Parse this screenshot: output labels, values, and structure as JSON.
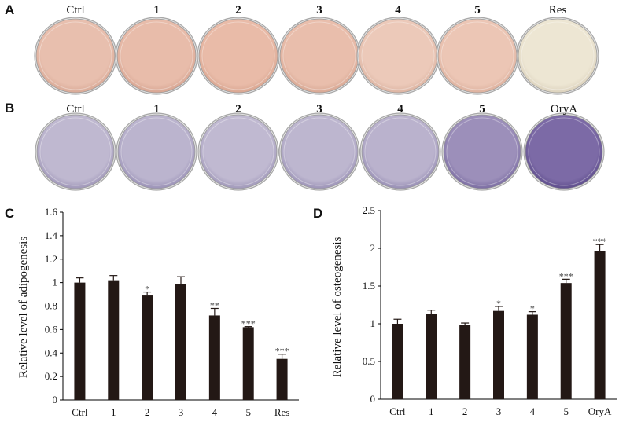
{
  "panels": {
    "A": {
      "label": "A",
      "dishes": [
        {
          "label": "Ctrl",
          "bold": false,
          "tint": "#e8bfae",
          "edge": "#d9a996"
        },
        {
          "label": "1",
          "bold": true,
          "tint": "#e8bcaa",
          "edge": "#d7a592"
        },
        {
          "label": "2",
          "bold": true,
          "tint": "#e9bba8",
          "edge": "#d9a691"
        },
        {
          "label": "3",
          "bold": true,
          "tint": "#e9beac",
          "edge": "#d8a894"
        },
        {
          "label": "4",
          "bold": true,
          "tint": "#ecc9b9",
          "edge": "#dcb4a2"
        },
        {
          "label": "5",
          "bold": true,
          "tint": "#ecc6b5",
          "edge": "#ddb19e"
        },
        {
          "label": "Res",
          "bold": false,
          "tint": "#ede6d3",
          "edge": "#dcd2bd"
        }
      ]
    },
    "B": {
      "label": "B",
      "dishes": [
        {
          "label": "Ctrl",
          "bold": false,
          "tint": "#bfb8d0",
          "edge": "#9f96b8"
        },
        {
          "label": "1",
          "bold": true,
          "tint": "#bbb4ce",
          "edge": "#9a91b6"
        },
        {
          "label": "2",
          "bold": true,
          "tint": "#c0b9d1",
          "edge": "#a098b9"
        },
        {
          "label": "3",
          "bold": true,
          "tint": "#bdb6cf",
          "edge": "#9c93b7"
        },
        {
          "label": "4",
          "bold": true,
          "tint": "#bab2cd",
          "edge": "#978eb4"
        },
        {
          "label": "5",
          "bold": true,
          "tint": "#9c8fba",
          "edge": "#7b6da2"
        },
        {
          "label": "OryA",
          "bold": false,
          "tint": "#7c6aa6",
          "edge": "#5e4d8c"
        }
      ]
    }
  },
  "chart_data": [
    {
      "panel": "C",
      "type": "bar",
      "ylabel": "Relative level of adipogenesis",
      "categories": [
        "Ctrl",
        "1",
        "2",
        "3",
        "4",
        "5",
        "Res"
      ],
      "values": [
        1.0,
        1.02,
        0.89,
        0.99,
        0.72,
        0.62,
        0.35
      ],
      "errors": [
        0.04,
        0.04,
        0.03,
        0.06,
        0.06,
        0.005,
        0.04
      ],
      "significance": [
        "",
        "",
        "*",
        "",
        "**",
        "***",
        "***"
      ],
      "ylim": [
        0,
        1.6
      ],
      "yticks": [
        "0",
        "0.2",
        "0.4",
        "0.6",
        "0.8",
        "1",
        "1.2",
        "1.4",
        "1.6"
      ],
      "bar_color": "#231815"
    },
    {
      "panel": "D",
      "type": "bar",
      "ylabel": "Relative level of osteogenesis",
      "categories": [
        "Ctrl",
        "1",
        "2",
        "3",
        "4",
        "5",
        "OryA"
      ],
      "values": [
        1.0,
        1.13,
        0.98,
        1.17,
        1.12,
        1.54,
        1.96
      ],
      "errors": [
        0.06,
        0.05,
        0.03,
        0.06,
        0.04,
        0.05,
        0.09
      ],
      "significance": [
        "",
        "",
        "",
        "*",
        "*",
        "***",
        "***"
      ],
      "ylim": [
        0,
        2.5
      ],
      "yticks": [
        "0",
        "0.5",
        "1",
        "1.5",
        "2",
        "2.5"
      ],
      "bar_color": "#231815"
    }
  ]
}
